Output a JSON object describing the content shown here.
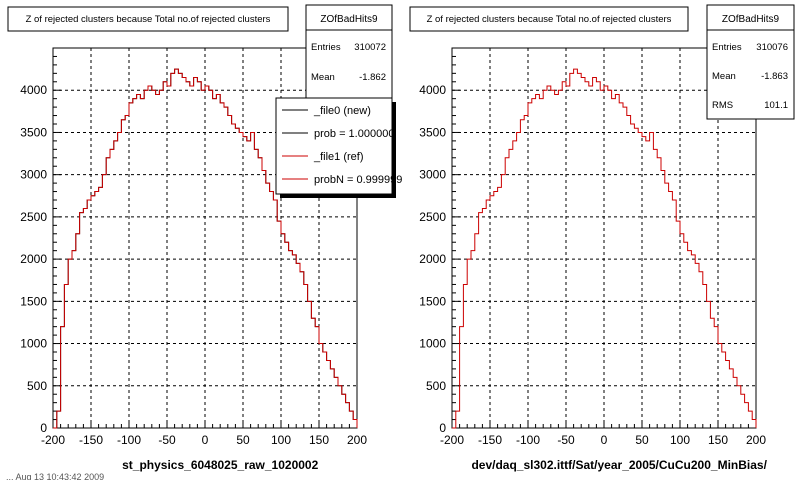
{
  "footer_partial": "... Aug 13 10:43:42 2009",
  "chart_data": [
    {
      "type": "histogram",
      "title": "Z of rejected clusters  because Total no.of rejected clusters",
      "xlabel": "st_physics_6048025_raw_1020002",
      "xlim": [
        -200,
        200
      ],
      "ylim": [
        0,
        4500
      ],
      "xticks": [
        -200,
        -150,
        -100,
        -50,
        0,
        50,
        100,
        150,
        200
      ],
      "yticks": [
        0,
        500,
        1000,
        1500,
        2000,
        2500,
        3000,
        3500,
        4000
      ],
      "grid": true,
      "bin_width": 5,
      "x_bin_edges_start": -200,
      "series": [
        {
          "name": "_file0 (new)",
          "color": "#000000",
          "values": [
            0,
            200,
            1200,
            1700,
            2000,
            2100,
            2300,
            2550,
            2600,
            2700,
            2750,
            2800,
            2850,
            3000,
            3200,
            3300,
            3400,
            3500,
            3650,
            3700,
            3850,
            3900,
            3950,
            3900,
            4000,
            4050,
            4000,
            3950,
            4000,
            4100,
            4050,
            4200,
            4250,
            4200,
            4150,
            4100,
            4050,
            4150,
            4100,
            4000,
            4050,
            4000,
            3900,
            3950,
            3850,
            3800,
            3700,
            3600,
            3550,
            3500,
            3450,
            3400,
            3500,
            3300,
            3200,
            3050,
            2900,
            2800,
            2700,
            2450,
            2300,
            2200,
            2100,
            2050,
            1950,
            1850,
            1700,
            1500,
            1300,
            1200,
            1000,
            900,
            800,
            700,
            600,
            500,
            400,
            300,
            200,
            100
          ]
        },
        {
          "name": "_file1 (ref)",
          "color": "#cc0000",
          "values": [
            0,
            200,
            1200,
            1700,
            2000,
            2100,
            2300,
            2550,
            2600,
            2700,
            2750,
            2800,
            2850,
            3000,
            3200,
            3300,
            3400,
            3500,
            3650,
            3700,
            3850,
            3900,
            3950,
            3900,
            4000,
            4050,
            4000,
            3950,
            4000,
            4100,
            4050,
            4200,
            4250,
            4200,
            4150,
            4100,
            4050,
            4150,
            4100,
            4000,
            4050,
            4000,
            3900,
            3950,
            3850,
            3800,
            3700,
            3600,
            3550,
            3500,
            3450,
            3400,
            3500,
            3300,
            3200,
            3050,
            2900,
            2800,
            2700,
            2450,
            2300,
            2200,
            2100,
            2050,
            1950,
            1850,
            1700,
            1500,
            1300,
            1200,
            1000,
            900,
            800,
            700,
            600,
            500,
            400,
            300,
            200,
            100
          ]
        }
      ],
      "stats": {
        "name": "ZOfBadHits9",
        "rows": [
          {
            "label": "Entries",
            "value": "310072"
          },
          {
            "label": "Mean",
            "value": "-1.862"
          }
        ]
      },
      "legend": {
        "placement": "top-right",
        "entries": [
          {
            "label": "_file0 (new)",
            "color": "#000000"
          },
          {
            "label": "prob = 1.000000",
            "color": "#000000"
          },
          {
            "label": "_file1 (ref)",
            "color": "#cc0000"
          },
          {
            "label": "probN = 0.999999",
            "color": "#cc0000"
          }
        ]
      }
    },
    {
      "type": "histogram",
      "title": "Z of rejected clusters  because Total no.of rejected clusters",
      "xlabel": "dev/daq_sl302.ittf/Sat/year_2005/CuCu200_MinBias/",
      "xlim": [
        -200,
        200
      ],
      "ylim": [
        0,
        4500
      ],
      "xticks": [
        -200,
        -150,
        -100,
        -50,
        0,
        50,
        100,
        150,
        200
      ],
      "yticks": [
        0,
        500,
        1000,
        1500,
        2000,
        2500,
        3000,
        3500,
        4000
      ],
      "grid": true,
      "bin_width": 5,
      "x_bin_edges_start": -200,
      "series": [
        {
          "name": "",
          "color": "#cc0000",
          "values": [
            0,
            200,
            1200,
            1700,
            2000,
            2100,
            2300,
            2550,
            2600,
            2700,
            2750,
            2800,
            2850,
            3000,
            3200,
            3300,
            3400,
            3500,
            3650,
            3700,
            3850,
            3900,
            3950,
            3900,
            4000,
            4050,
            4000,
            3950,
            4000,
            4100,
            4050,
            4200,
            4250,
            4200,
            4150,
            4100,
            4050,
            4150,
            4100,
            4000,
            4050,
            4000,
            3900,
            3950,
            3850,
            3800,
            3700,
            3600,
            3550,
            3500,
            3450,
            3400,
            3500,
            3300,
            3200,
            3050,
            2900,
            2800,
            2700,
            2450,
            2300,
            2200,
            2100,
            2050,
            1950,
            1850,
            1700,
            1500,
            1300,
            1200,
            1000,
            900,
            800,
            700,
            600,
            500,
            400,
            300,
            200,
            100
          ]
        }
      ],
      "stats": {
        "name": "ZOfBadHits9",
        "rows": [
          {
            "label": "Entries",
            "value": "310076"
          },
          {
            "label": "Mean",
            "value": "-1.863"
          },
          {
            "label": "RMS",
            "value": "101.1"
          }
        ]
      }
    }
  ]
}
